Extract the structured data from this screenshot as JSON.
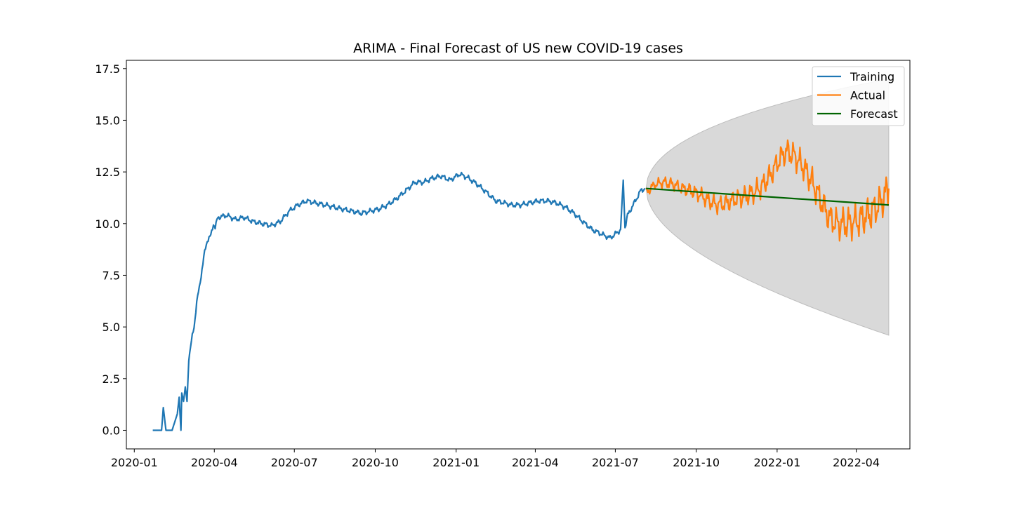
{
  "chart_data": {
    "type": "line",
    "title": "ARIMA - Final Forecast of US new COVID-19 cases",
    "xlabel": "",
    "ylabel": "",
    "x_axis_type": "date",
    "xlim": [
      "2019-12-23",
      "2022-06-01"
    ],
    "ylim": [
      -0.9,
      17.9
    ],
    "x_ticks": [
      "2020-01",
      "2020-04",
      "2020-07",
      "2020-10",
      "2021-01",
      "2021-04",
      "2021-07",
      "2021-10",
      "2022-01",
      "2022-04"
    ],
    "y_ticks": [
      "0.0",
      "2.5",
      "5.0",
      "7.5",
      "10.0",
      "12.5",
      "15.0",
      "17.5"
    ],
    "grid": false,
    "legend_position": "top-right",
    "series": [
      {
        "name": "Training",
        "color": "#1f77b4",
        "points": [
          [
            "2020-01-22",
            0.0
          ],
          [
            "2020-02-01",
            0.0
          ],
          [
            "2020-02-03",
            1.1
          ],
          [
            "2020-02-06",
            0.0
          ],
          [
            "2020-02-13",
            0.0
          ],
          [
            "2020-02-19",
            0.8
          ],
          [
            "2020-02-21",
            1.6
          ],
          [
            "2020-02-23",
            0.0
          ],
          [
            "2020-02-24",
            1.8
          ],
          [
            "2020-02-26",
            1.4
          ],
          [
            "2020-02-28",
            2.1
          ],
          [
            "2020-03-01",
            1.4
          ],
          [
            "2020-03-03",
            3.5
          ],
          [
            "2020-03-06",
            4.3
          ],
          [
            "2020-03-09",
            5.0
          ],
          [
            "2020-03-12",
            6.2
          ],
          [
            "2020-03-15",
            6.9
          ],
          [
            "2020-03-18",
            7.8
          ],
          [
            "2020-03-21",
            8.6
          ],
          [
            "2020-03-24",
            9.2
          ],
          [
            "2020-03-28",
            9.4
          ],
          [
            "2020-03-31",
            10.0
          ],
          [
            "2020-04-02",
            9.8
          ],
          [
            "2020-04-05",
            10.3
          ],
          [
            "2020-04-15",
            10.4
          ],
          [
            "2020-04-25",
            10.2
          ],
          [
            "2020-05-05",
            10.3
          ],
          [
            "2020-05-15",
            10.1
          ],
          [
            "2020-05-25",
            10.0
          ],
          [
            "2020-06-05",
            9.9
          ],
          [
            "2020-06-15",
            10.1
          ],
          [
            "2020-06-25",
            10.6
          ],
          [
            "2020-07-05",
            10.9
          ],
          [
            "2020-07-15",
            11.1
          ],
          [
            "2020-07-25",
            11.0
          ],
          [
            "2020-08-05",
            10.9
          ],
          [
            "2020-08-15",
            10.8
          ],
          [
            "2020-08-25",
            10.7
          ],
          [
            "2020-09-05",
            10.6
          ],
          [
            "2020-09-15",
            10.5
          ],
          [
            "2020-09-25",
            10.6
          ],
          [
            "2020-10-05",
            10.7
          ],
          [
            "2020-10-15",
            10.9
          ],
          [
            "2020-10-25",
            11.2
          ],
          [
            "2020-11-05",
            11.6
          ],
          [
            "2020-11-15",
            12.0
          ],
          [
            "2020-11-25",
            12.0
          ],
          [
            "2020-12-05",
            12.2
          ],
          [
            "2020-12-15",
            12.3
          ],
          [
            "2020-12-25",
            12.1
          ],
          [
            "2021-01-05",
            12.4
          ],
          [
            "2021-01-15",
            12.2
          ],
          [
            "2021-01-25",
            11.9
          ],
          [
            "2021-02-05",
            11.5
          ],
          [
            "2021-02-15",
            11.1
          ],
          [
            "2021-02-25",
            11.0
          ],
          [
            "2021-03-05",
            10.9
          ],
          [
            "2021-03-15",
            10.9
          ],
          [
            "2021-03-25",
            11.0
          ],
          [
            "2021-04-05",
            11.1
          ],
          [
            "2021-04-15",
            11.1
          ],
          [
            "2021-04-25",
            11.0
          ],
          [
            "2021-05-05",
            10.8
          ],
          [
            "2021-05-15",
            10.5
          ],
          [
            "2021-05-25",
            10.1
          ],
          [
            "2021-06-05",
            9.7
          ],
          [
            "2021-06-15",
            9.5
          ],
          [
            "2021-06-25",
            9.3
          ],
          [
            "2021-07-01",
            9.5
          ],
          [
            "2021-07-07",
            9.7
          ],
          [
            "2021-07-10",
            12.1
          ],
          [
            "2021-07-12",
            9.8
          ],
          [
            "2021-07-15",
            10.4
          ],
          [
            "2021-07-20",
            10.8
          ],
          [
            "2021-07-25",
            11.2
          ],
          [
            "2021-07-30",
            11.6
          ],
          [
            "2021-08-04",
            11.7
          ]
        ]
      },
      {
        "name": "Actual",
        "color": "#ff7f0e",
        "points": [
          [
            "2021-08-05",
            11.5
          ],
          [
            "2021-08-15",
            11.9
          ],
          [
            "2021-08-25",
            12.0
          ],
          [
            "2021-09-05",
            11.9
          ],
          [
            "2021-09-15",
            11.7
          ],
          [
            "2021-09-25",
            11.6
          ],
          [
            "2021-10-05",
            11.4
          ],
          [
            "2021-10-15",
            11.1
          ],
          [
            "2021-10-25",
            10.9
          ],
          [
            "2021-11-05",
            11.0
          ],
          [
            "2021-11-15",
            11.2
          ],
          [
            "2021-11-25",
            11.3
          ],
          [
            "2021-12-05",
            11.5
          ],
          [
            "2021-12-15",
            11.8
          ],
          [
            "2021-12-25",
            12.4
          ],
          [
            "2022-01-05",
            13.2
          ],
          [
            "2022-01-12",
            13.5
          ],
          [
            "2022-01-20",
            13.3
          ],
          [
            "2022-01-30",
            12.8
          ],
          [
            "2022-02-10",
            12.0
          ],
          [
            "2022-02-20",
            11.1
          ],
          [
            "2022-03-01",
            10.3
          ],
          [
            "2022-03-10",
            10.0
          ],
          [
            "2022-03-20",
            10.0
          ],
          [
            "2022-03-31",
            10.1
          ],
          [
            "2022-04-10",
            10.3
          ],
          [
            "2022-04-20",
            10.6
          ],
          [
            "2022-04-30",
            11.1
          ],
          [
            "2022-05-08",
            11.7
          ]
        ]
      },
      {
        "name": "Forecast",
        "color": "#006400",
        "points": [
          [
            "2021-08-05",
            11.7
          ],
          [
            "2022-05-08",
            10.9
          ]
        ]
      }
    ],
    "confidence_interval": {
      "color": "#d9d9d9",
      "start": "2021-08-05",
      "end": "2022-05-08",
      "upper_end": 17.0,
      "lower_end": 4.6
    }
  }
}
